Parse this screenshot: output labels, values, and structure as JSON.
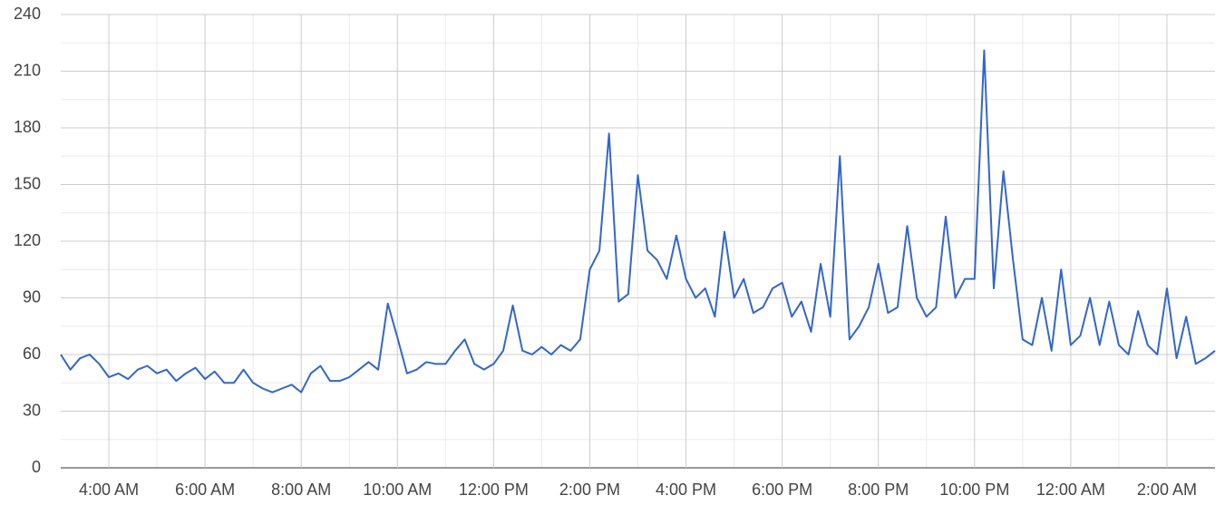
{
  "chart_data": {
    "type": "line",
    "x": [
      3,
      3.2,
      3.4,
      3.6,
      3.8,
      4,
      4.2,
      4.4,
      4.6,
      4.8,
      5,
      5.2,
      5.4,
      5.6,
      5.8,
      6,
      6.2,
      6.4,
      6.6,
      6.8,
      7,
      7.2,
      7.4,
      7.6,
      7.8,
      8,
      8.2,
      8.4,
      8.6,
      8.8,
      9,
      9.2,
      9.4,
      9.6,
      9.8,
      10,
      10.2,
      10.4,
      10.6,
      10.8,
      11,
      11.2,
      11.4,
      11.6,
      11.8,
      12,
      12.2,
      12.4,
      12.6,
      12.8,
      13,
      13.2,
      13.4,
      13.6,
      13.8,
      14,
      14.2,
      14.4,
      14.6,
      14.8,
      15,
      15.2,
      15.4,
      15.6,
      15.8,
      16,
      16.2,
      16.4,
      16.6,
      16.8,
      17,
      17.2,
      17.4,
      17.6,
      17.8,
      18,
      18.2,
      18.4,
      18.6,
      18.8,
      19,
      19.2,
      19.4,
      19.6,
      19.8,
      20,
      20.2,
      20.4,
      20.6,
      20.8,
      21,
      21.2,
      21.4,
      21.6,
      21.8,
      22,
      22.2,
      22.4,
      22.6,
      22.8,
      23,
      23.2,
      23.4,
      23.6,
      23.8,
      24,
      24.2,
      24.4,
      24.6,
      24.8,
      25,
      25.2,
      25.4,
      25.6,
      25.8,
      26,
      26.2,
      26.4,
      26.6,
      26.8,
      27
    ],
    "series": [
      {
        "color": "#3366cc",
        "values": [
          60,
          52,
          58,
          60,
          55,
          48,
          50,
          47,
          52,
          54,
          50,
          52,
          46,
          50,
          53,
          47,
          51,
          45,
          45,
          52,
          45,
          42,
          40,
          42,
          44,
          40,
          50,
          54,
          46,
          46,
          48,
          52,
          56,
          52,
          87,
          69,
          50,
          52,
          56,
          55,
          55,
          62,
          68,
          55,
          52,
          55,
          62,
          86,
          62,
          60,
          64,
          60,
          65,
          62,
          68,
          105,
          115,
          177,
          88,
          92,
          155,
          115,
          110,
          100,
          123,
          100,
          90,
          95,
          80,
          125,
          90,
          100,
          82,
          85,
          95,
          98,
          80,
          88,
          72,
          108,
          80,
          165,
          68,
          75,
          85,
          108,
          82,
          85,
          128,
          90,
          80,
          85,
          133,
          90,
          100,
          100,
          221,
          95,
          157,
          110,
          68,
          65,
          90,
          62,
          105,
          65,
          70,
          90,
          65,
          88,
          65,
          60,
          83,
          65,
          60,
          95,
          58,
          80,
          55,
          58,
          62
        ]
      }
    ],
    "xlim": [
      3,
      27
    ],
    "xticks": [
      {
        "value": 4,
        "label": "4:00 AM"
      },
      {
        "value": 6,
        "label": "6:00 AM"
      },
      {
        "value": 8,
        "label": "8:00 AM"
      },
      {
        "value": 10,
        "label": "10:00 AM"
      },
      {
        "value": 12,
        "label": "12:00 PM"
      },
      {
        "value": 14,
        "label": "2:00 PM"
      },
      {
        "value": 16,
        "label": "4:00 PM"
      },
      {
        "value": 18,
        "label": "6:00 PM"
      },
      {
        "value": 20,
        "label": "8:00 PM"
      },
      {
        "value": 22,
        "label": "10:00 PM"
      },
      {
        "value": 24,
        "label": "12:00 AM"
      },
      {
        "value": 26,
        "label": "2:00 AM"
      }
    ],
    "xminorticks": [
      5,
      7,
      9,
      11,
      13,
      15,
      17,
      19,
      21,
      23,
      25
    ],
    "ylim": [
      0,
      240
    ],
    "yticks": [
      0,
      30,
      60,
      90,
      120,
      150,
      180,
      210,
      240
    ],
    "yminorticks": [
      15,
      45,
      75,
      105,
      135,
      165,
      195,
      225
    ],
    "grid": true
  }
}
